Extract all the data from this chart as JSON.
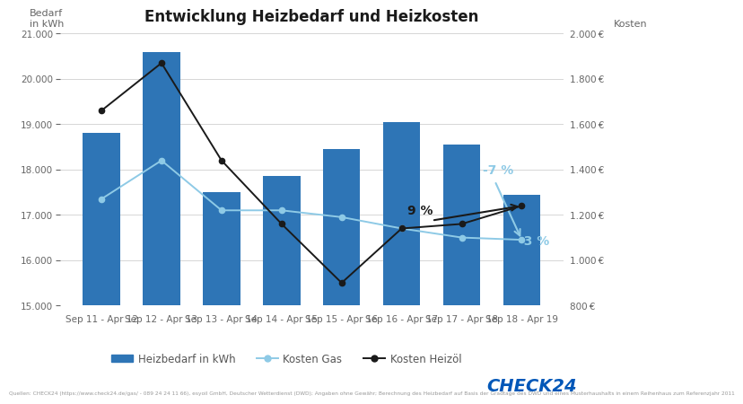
{
  "categories": [
    "Sep 11 - Apr 12",
    "Sep 12 - Apr 13",
    "Sep 13 - Apr 14",
    "Sep 14 - Apr 15",
    "Sep 15 - Apr 16",
    "Sep 16 - Apr 17",
    "Sep 17 - Apr 18",
    "Sep 18 - Apr 19"
  ],
  "heizbedarf": [
    18800,
    20600,
    17500,
    17850,
    18450,
    19050,
    18550,
    17450
  ],
  "kosten_gas": [
    17350,
    18200,
    17100,
    17100,
    16950,
    16700,
    16500,
    16450
  ],
  "kosten_heizoel": [
    1660,
    1870,
    1440,
    1160,
    900,
    1140,
    1160,
    1240
  ],
  "bar_color": "#2e75b6",
  "gas_color": "#8ecae6",
  "heizoel_color": "#1a1a1a",
  "title": "Entwicklung Heizbedarf und Heizkosten",
  "ylabel_left": "Bedarf\nin kWh",
  "ylabel_right": "Kosten",
  "ylim_left": [
    15000,
    21000
  ],
  "ylim_right": [
    800,
    2000
  ],
  "yticks_left": [
    15000,
    16000,
    17000,
    18000,
    19000,
    20000,
    21000
  ],
  "yticks_right": [
    800,
    1000,
    1200,
    1400,
    1600,
    1800,
    2000
  ],
  "ytick_labels_left": [
    "15.000",
    "16.000",
    "17.000",
    "18.000",
    "19.000",
    "20.000",
    "21.000"
  ],
  "ytick_labels_right": [
    "800 €",
    "1.000 €",
    "1.200 €",
    "1.400 €",
    "1.600 €",
    "1.800 €",
    "2.000 €"
  ],
  "annotation_gas_pct": "-7 %",
  "annotation_heizoel_pct": "9 %",
  "annotation_gas2_pct": "-3 %",
  "source_text": "Quellen: CHECK24 (https://www.check24.de/gas/ - 089 24 24 11 66), esyoil GmbH, Deutscher Wetterdienst (DWD); Angaben ohne Gewähr; Berechnung des Heizbedarf auf Basis der Gradtage des DWD und eines Musterhaushalts in einem Reihenhaus zum Referenzjahr 2011",
  "background_color": "#ffffff",
  "grid_color": "#d0d0d0",
  "check24_color": "#0057b8",
  "legend_labels": [
    "Heizbedarf in kWh",
    "Kosten Gas",
    "Heizöl"
  ]
}
